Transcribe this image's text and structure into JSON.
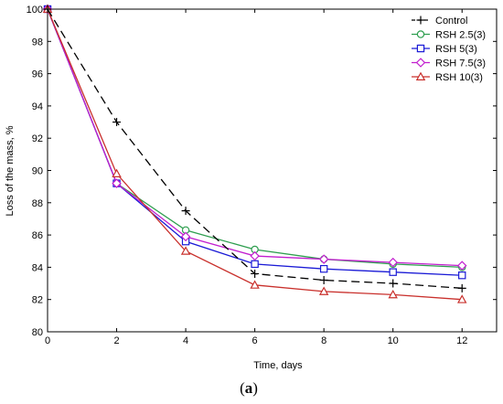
{
  "chart_data": {
    "type": "line",
    "title": "",
    "xlabel": "Time, days",
    "ylabel": "Loss of the mass, %",
    "xlim": [
      0,
      13
    ],
    "ylim": [
      80,
      100
    ],
    "xticks": [
      0,
      2,
      4,
      6,
      8,
      10,
      12
    ],
    "yticks": [
      80,
      82,
      84,
      86,
      88,
      90,
      92,
      94,
      96,
      98,
      100
    ],
    "grid": false,
    "legend_position": "top-right",
    "series": [
      {
        "name": "Control",
        "color": "#000000",
        "marker": "plus",
        "dash": "dashed",
        "x": [
          0,
          2,
          4,
          6,
          8,
          10,
          12
        ],
        "values": [
          100,
          93.0,
          87.5,
          83.6,
          83.2,
          83.0,
          82.7
        ]
      },
      {
        "name": "RSH 2.5(3)",
        "color": "#2e9e4f",
        "marker": "circle",
        "dash": "solid",
        "x": [
          0,
          2,
          4,
          6,
          8,
          10,
          12
        ],
        "values": [
          100,
          89.2,
          86.3,
          85.1,
          84.5,
          84.2,
          84.0
        ]
      },
      {
        "name": "RSH 5(3)",
        "color": "#1a1ad6",
        "marker": "square",
        "dash": "solid",
        "x": [
          0,
          2,
          4,
          6,
          8,
          10,
          12
        ],
        "values": [
          100,
          89.2,
          85.6,
          84.2,
          83.9,
          83.7,
          83.5
        ]
      },
      {
        "name": "RSH 7.5(3)",
        "color": "#c21ecf",
        "marker": "diamond",
        "dash": "solid",
        "x": [
          0,
          2,
          4,
          6,
          8,
          10,
          12
        ],
        "values": [
          100,
          89.2,
          85.9,
          84.7,
          84.5,
          84.3,
          84.1
        ]
      },
      {
        "name": "RSH 10(3)",
        "color": "#c9302c",
        "marker": "triangle",
        "dash": "solid",
        "x": [
          0,
          2,
          4,
          6,
          8,
          10,
          12
        ],
        "values": [
          100,
          89.8,
          85.0,
          82.9,
          82.5,
          82.3,
          82.0
        ]
      }
    ]
  },
  "caption": {
    "open": "(",
    "letter": "a",
    "close": ")"
  }
}
